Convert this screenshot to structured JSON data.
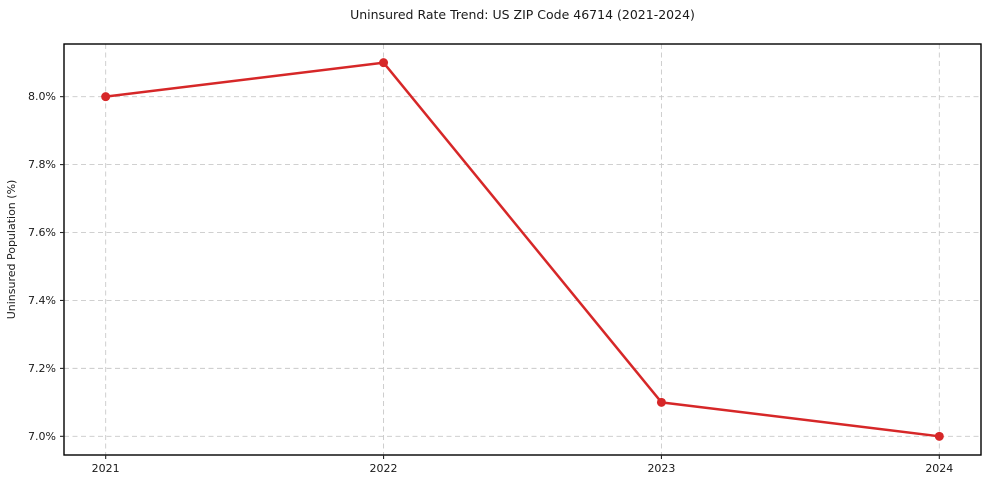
{
  "chart_data": {
    "type": "line",
    "title": "Uninsured Rate Trend: US ZIP Code 46714 (2021-2024)",
    "xlabel": "",
    "ylabel": "Uninsured Population (%)",
    "x": [
      2021,
      2022,
      2023,
      2024
    ],
    "values": [
      8.0,
      8.1,
      7.1,
      7.0
    ],
    "xtick_labels": [
      "2021",
      "2022",
      "2023",
      "2024"
    ],
    "yticks": [
      7.0,
      7.2,
      7.4,
      7.6,
      7.8,
      8.0
    ],
    "ytick_labels": [
      "7.0%",
      "7.2%",
      "7.4%",
      "7.6%",
      "7.8%",
      "8.0%"
    ],
    "xlim": [
      2020.85,
      2024.15
    ],
    "ylim": [
      6.945,
      8.155
    ],
    "grid": true,
    "grid_style": "dashed",
    "legend_position": "none",
    "marker": "circle",
    "colors": {
      "line": "#d62728",
      "marker": "#d62728",
      "grid": "#c9c9c9",
      "spine": "#000000",
      "tick": "#262626",
      "text": "#1a1a1a",
      "background": "#ffffff"
    }
  }
}
